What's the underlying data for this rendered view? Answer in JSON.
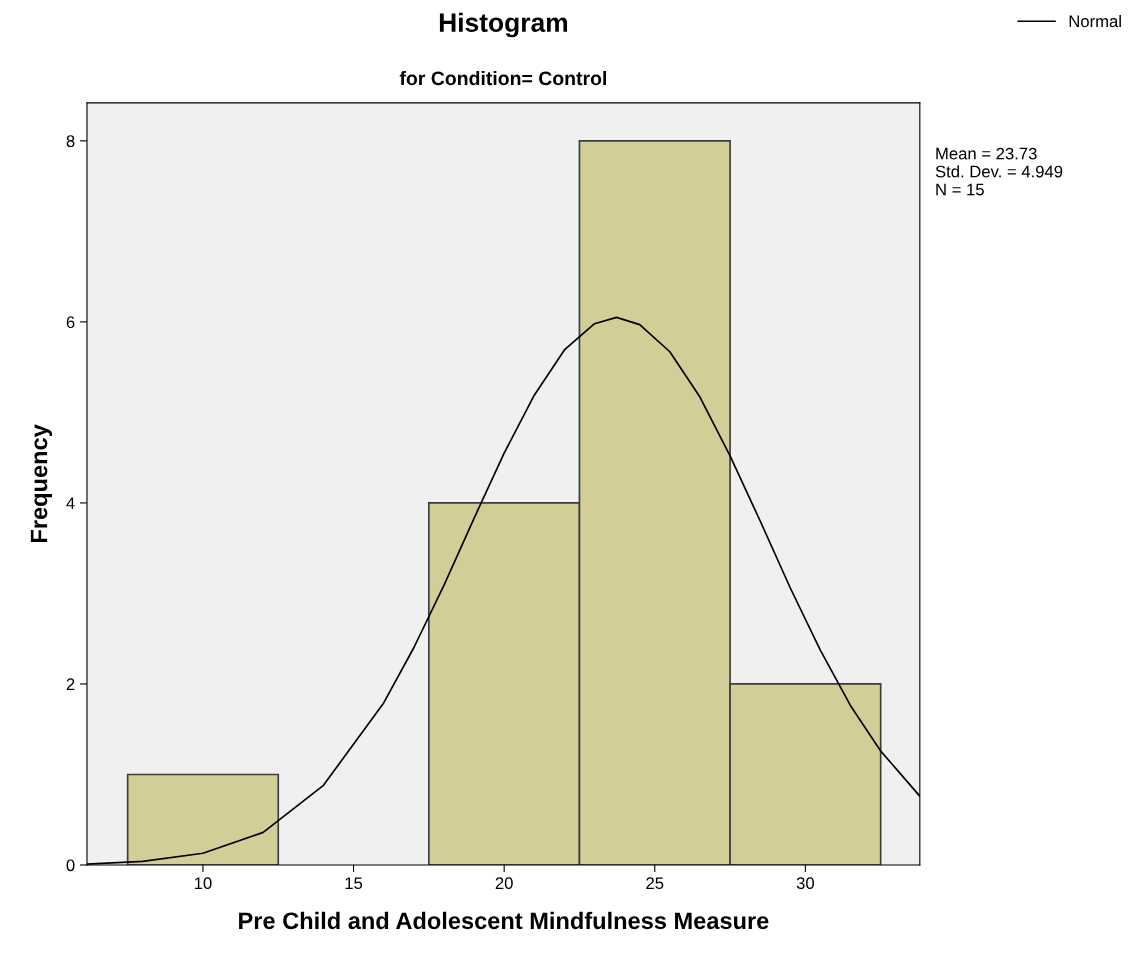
{
  "chart_data": {
    "type": "histogram",
    "title": "Histogram",
    "subtitle": "for Condition= Control",
    "xlabel": "Pre Child and Adolescent Mindfulness Measure",
    "ylabel": "Frequency",
    "xlim": [
      6.15,
      33.8
    ],
    "xticks": [
      10,
      15,
      20,
      25,
      30
    ],
    "ylim": [
      0,
      8.42
    ],
    "yticks": [
      0,
      2,
      4,
      6,
      8
    ],
    "grid": false,
    "legend": "top right",
    "annotations": [
      "Mean = 23.73",
      "Std. Dev. = 4.949",
      "N = 15"
    ],
    "series": [
      {
        "color": "#d3ce97",
        "bins": [
          7.5,
          12.5,
          17.5,
          22.5,
          27.5,
          32.5
        ],
        "values": [
          1,
          0,
          4,
          8,
          2
        ]
      },
      {
        "type": "line",
        "name": "Normal",
        "color": "#000000",
        "x": [
          6.15,
          8,
          10,
          12,
          14,
          16,
          17,
          18,
          19,
          20,
          21,
          22,
          23,
          23.73,
          24.5,
          25.5,
          26.5,
          27.5,
          28.5,
          29.5,
          30.5,
          31.5,
          32.5,
          33.8
        ],
        "values": [
          0.01,
          0.04,
          0.13,
          0.36,
          0.88,
          1.79,
          2.4,
          3.09,
          3.83,
          4.55,
          5.19,
          5.69,
          5.98,
          6.05,
          5.97,
          5.67,
          5.17,
          4.52,
          3.8,
          3.06,
          2.37,
          1.76,
          1.26,
          0.76
        ]
      }
    ]
  }
}
